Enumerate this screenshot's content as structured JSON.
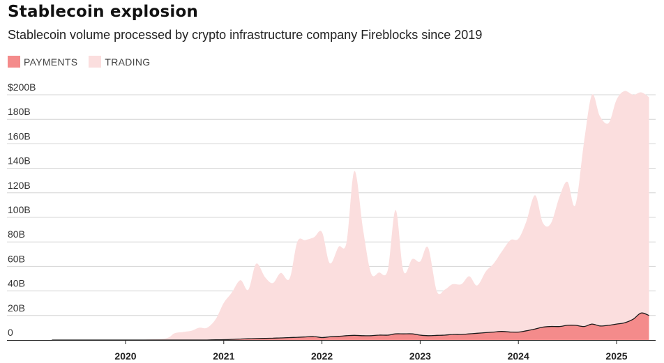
{
  "chart_data": {
    "type": "area",
    "title": "Stablecoin explosion",
    "subtitle": "Stablecoin volume processed by crypto infrastructure company Fireblocks since 2019",
    "xlabel": "",
    "ylabel": "",
    "ylim": [
      0,
      200
    ],
    "stacked": true,
    "grid": true,
    "legend_position": "top-left",
    "y_ticks": [
      "0",
      "20B",
      "40B",
      "60B",
      "80B",
      "100B",
      "120B",
      "140B",
      "160B",
      "180B",
      "$200B"
    ],
    "x_ticks": [
      "2020",
      "2021",
      "2022",
      "2023",
      "2024",
      "2025"
    ],
    "x": [
      2019.25,
      2019.5,
      2019.75,
      2020.0,
      2020.25,
      2020.42,
      2020.5,
      2020.58,
      2020.67,
      2020.75,
      2020.83,
      2020.92,
      2021.0,
      2021.08,
      2021.17,
      2021.25,
      2021.33,
      2021.42,
      2021.5,
      2021.58,
      2021.67,
      2021.75,
      2021.83,
      2021.92,
      2022.0,
      2022.08,
      2022.17,
      2022.25,
      2022.33,
      2022.42,
      2022.5,
      2022.58,
      2022.67,
      2022.75,
      2022.83,
      2022.92,
      2023.0,
      2023.08,
      2023.17,
      2023.25,
      2023.33,
      2023.42,
      2023.5,
      2023.58,
      2023.67,
      2023.75,
      2023.83,
      2023.92,
      2024.0,
      2024.08,
      2024.17,
      2024.25,
      2024.33,
      2024.42,
      2024.5,
      2024.58,
      2024.67,
      2024.75,
      2024.83,
      2024.92,
      2025.0,
      2025.08,
      2025.17,
      2025.25,
      2025.33
    ],
    "series": [
      {
        "name": "PAYMENTS",
        "color": "#f48b8b",
        "values": [
          0,
          0,
          0,
          0,
          0,
          0,
          0,
          0,
          0,
          0,
          0,
          0.2,
          0.3,
          0.5,
          0.8,
          1.0,
          1.2,
          1.3,
          1.5,
          1.7,
          2.0,
          2.2,
          2.5,
          2.8,
          2.0,
          2.6,
          3.0,
          3.5,
          3.8,
          3.5,
          3.5,
          4.0,
          4.0,
          5.0,
          5.0,
          5.0,
          4.0,
          3.5,
          3.8,
          4.0,
          4.5,
          4.5,
          5.0,
          5.5,
          6.0,
          6.5,
          7.0,
          6.5,
          6.5,
          7.5,
          9.0,
          10.5,
          11.0,
          11.0,
          12.0,
          12.0,
          11.0,
          13.0,
          11.5,
          12.0,
          13.0,
          14.0,
          17.0,
          22.0,
          20.0
        ]
      },
      {
        "name": "TRADING",
        "color": "#fbdede",
        "values": [
          0,
          0,
          0,
          0,
          0.5,
          1.5,
          5.5,
          6.5,
          7.5,
          10.0,
          10.0,
          17.0,
          30.0,
          38.0,
          48.0,
          40.0,
          61.0,
          50.0,
          45.0,
          53.0,
          48.0,
          78.0,
          79.0,
          81.0,
          86.0,
          60.0,
          73.0,
          76.0,
          134.0,
          86.0,
          51.0,
          51.0,
          53.0,
          101.0,
          51.0,
          61.0,
          60.0,
          72.0,
          36.0,
          37.0,
          41.0,
          41.0,
          47.0,
          39.0,
          50.0,
          56.0,
          65.0,
          75.0,
          76.0,
          89.0,
          109.0,
          85.0,
          84.0,
          106.0,
          117.0,
          98.0,
          151.0,
          187.0,
          171.0,
          165.0,
          183.0,
          189.0,
          183.0,
          180.0,
          178.0
        ]
      }
    ]
  }
}
